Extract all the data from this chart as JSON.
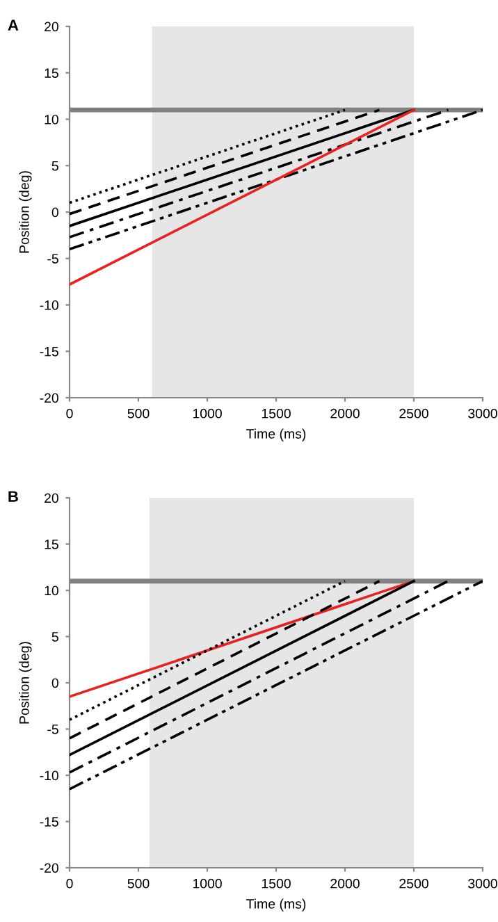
{
  "chart_data": [
    {
      "type": "line",
      "title": "A",
      "xlabel": "Time (ms)",
      "ylabel": "Position (deg)",
      "xlim": [
        0,
        3000
      ],
      "ylim": [
        -20,
        20
      ],
      "xticks": [
        0,
        500,
        1000,
        1500,
        2000,
        2500,
        3000
      ],
      "yticks": [
        -20,
        -15,
        -10,
        -5,
        0,
        5,
        10,
        15,
        20
      ],
      "grid": false,
      "legend": false,
      "marker": "none",
      "bands": [
        {
          "axis": "x",
          "from": 600,
          "to": 2500,
          "color": "#e6e6e6"
        }
      ],
      "ref_lines": [
        {
          "axis": "y",
          "value": 11,
          "color": "#808080"
        }
      ],
      "series": [
        {
          "color": "#000000",
          "line_style": "dotted",
          "x": [
            0,
            2000
          ],
          "values": [
            1,
            11
          ]
        },
        {
          "color": "#000000",
          "line_style": "dashed",
          "x": [
            0,
            2250
          ],
          "values": [
            -0.2,
            11
          ]
        },
        {
          "color": "#000000",
          "line_style": "solid",
          "x": [
            0,
            2500
          ],
          "values": [
            -1.5,
            11
          ]
        },
        {
          "color": "#000000",
          "line_style": "dashdot",
          "x": [
            0,
            2750
          ],
          "values": [
            -2.7,
            11
          ]
        },
        {
          "color": "#000000",
          "line_style": "dashdotdot",
          "x": [
            0,
            3000
          ],
          "values": [
            -4,
            11
          ]
        },
        {
          "color": "#e8231f",
          "line_style": "solid",
          "x": [
            0,
            2500
          ],
          "values": [
            -7.8,
            11
          ]
        }
      ]
    },
    {
      "type": "line",
      "title": "B",
      "xlabel": "Time (ms)",
      "ylabel": "Position (deg)",
      "xlim": [
        0,
        3000
      ],
      "ylim": [
        -20,
        20
      ],
      "xticks": [
        0,
        500,
        1000,
        1500,
        2000,
        2500,
        3000
      ],
      "yticks": [
        -20,
        -15,
        -10,
        -5,
        0,
        5,
        10,
        15,
        20
      ],
      "grid": false,
      "legend": false,
      "marker": "none",
      "bands": [
        {
          "axis": "x",
          "from": 580,
          "to": 2500,
          "color": "#e6e6e6"
        }
      ],
      "ref_lines": [
        {
          "axis": "y",
          "value": 11,
          "color": "#808080"
        }
      ],
      "series": [
        {
          "color": "#e8231f",
          "line_style": "solid",
          "x": [
            0,
            2500
          ],
          "values": [
            -1.5,
            11
          ]
        },
        {
          "color": "#000000",
          "line_style": "dotted",
          "x": [
            0,
            2000
          ],
          "values": [
            -4,
            11
          ]
        },
        {
          "color": "#000000",
          "line_style": "dashed",
          "x": [
            0,
            2250
          ],
          "values": [
            -6,
            11
          ]
        },
        {
          "color": "#000000",
          "line_style": "solid",
          "x": [
            0,
            2500
          ],
          "values": [
            -7.8,
            11
          ]
        },
        {
          "color": "#000000",
          "line_style": "dashdot",
          "x": [
            0,
            2750
          ],
          "values": [
            -9.7,
            11
          ]
        },
        {
          "color": "#000000",
          "line_style": "dashdotdot",
          "x": [
            0,
            3000
          ],
          "values": [
            -11.5,
            11
          ]
        }
      ]
    }
  ]
}
